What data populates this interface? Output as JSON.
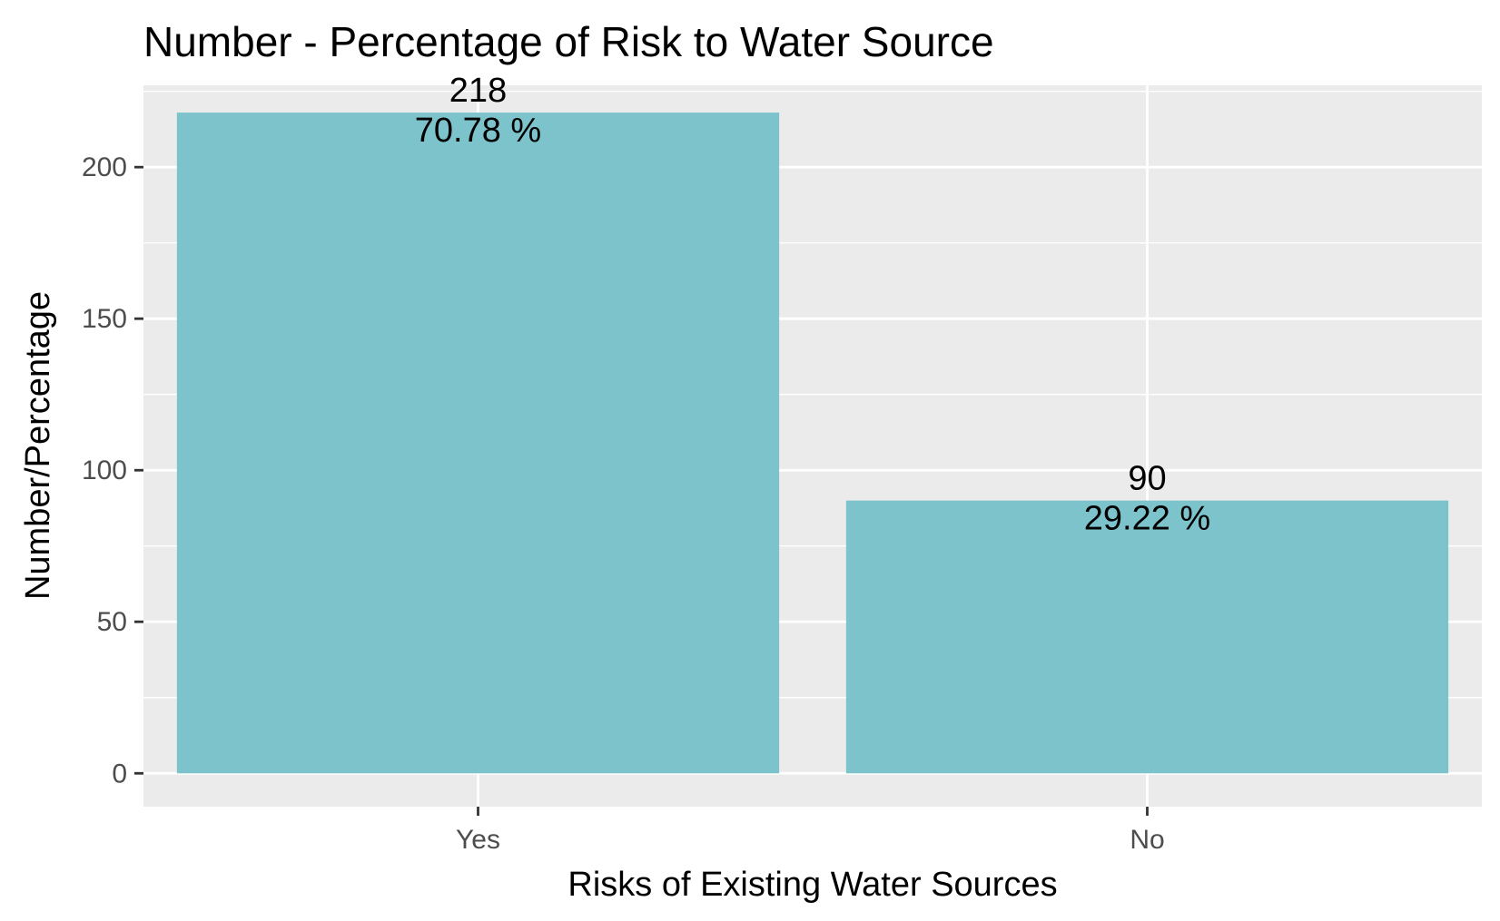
{
  "chart_data": {
    "type": "bar",
    "title": "Number - Percentage of Risk to Water Source",
    "xlabel": "Risks of Existing Water Sources",
    "ylabel": "Number/Percentage",
    "categories": [
      "Yes",
      "No"
    ],
    "values": [
      218,
      90
    ],
    "value_labels": [
      "218",
      "90"
    ],
    "percent_labels": [
      "70.78 %",
      "29.22 %"
    ],
    "ylim": [
      -11,
      227
    ],
    "yticks": [
      0,
      50,
      100,
      150,
      200
    ],
    "ytick_labels": [
      "0",
      "50",
      "100",
      "150",
      "200"
    ],
    "grid": true,
    "legend": "none",
    "bar_color": "#7cc3cc",
    "panel_color": "#ebebeb"
  }
}
